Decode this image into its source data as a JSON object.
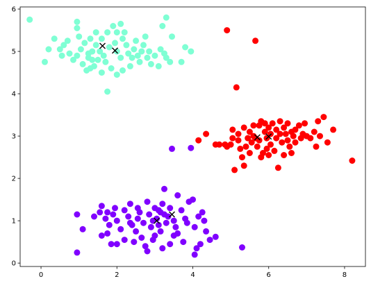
{
  "chart_data": {
    "type": "scatter",
    "title": "",
    "xlabel": "",
    "ylabel": "",
    "xlim": [
      -0.55,
      8.55
    ],
    "ylim": [
      -0.08,
      6.05
    ],
    "xticks": [
      0,
      2,
      4,
      6,
      8
    ],
    "yticks": [
      0,
      1,
      2,
      3,
      4,
      5,
      6
    ],
    "grid": false,
    "legend": "none",
    "series": [
      {
        "color": "#7fffd4",
        "points": [
          [
            -0.3,
            5.75
          ],
          [
            0.35,
            5.3
          ],
          [
            0.5,
            5.05
          ],
          [
            0.1,
            4.75
          ],
          [
            0.7,
            5.25
          ],
          [
            0.55,
            4.9
          ],
          [
            0.85,
            4.8
          ],
          [
            0.95,
            5.55
          ],
          [
            1.0,
            5.35
          ],
          [
            1.15,
            5.2
          ],
          [
            1.3,
            5.3
          ],
          [
            1.45,
            5.15
          ],
          [
            0.95,
            4.9
          ],
          [
            1.1,
            4.7
          ],
          [
            1.25,
            4.85
          ],
          [
            1.35,
            5.0
          ],
          [
            1.5,
            4.8
          ],
          [
            1.65,
            4.9
          ],
          [
            1.8,
            5.1
          ],
          [
            1.6,
            5.3
          ],
          [
            1.75,
            5.45
          ],
          [
            1.9,
            5.6
          ],
          [
            2.0,
            5.45
          ],
          [
            2.15,
            5.3
          ],
          [
            2.25,
            5.15
          ],
          [
            2.0,
            5.0
          ],
          [
            2.1,
            4.85
          ],
          [
            2.3,
            4.95
          ],
          [
            2.45,
            5.05
          ],
          [
            2.55,
            4.9
          ],
          [
            2.7,
            5.15
          ],
          [
            2.85,
            5.0
          ],
          [
            3.0,
            4.9
          ],
          [
            3.15,
            5.05
          ],
          [
            3.3,
            4.85
          ],
          [
            2.9,
            4.7
          ],
          [
            2.6,
            4.75
          ],
          [
            2.35,
            4.65
          ],
          [
            2.15,
            4.55
          ],
          [
            1.85,
            4.6
          ],
          [
            1.6,
            4.5
          ],
          [
            1.4,
            4.65
          ],
          [
            1.2,
            4.55
          ],
          [
            1.75,
            4.05
          ],
          [
            1.55,
            5.0
          ],
          [
            1.45,
            5.45
          ],
          [
            1.25,
            4.95
          ],
          [
            0.75,
            4.95
          ],
          [
            0.6,
            5.15
          ],
          [
            0.2,
            5.05
          ],
          [
            0.95,
            5.7
          ],
          [
            2.2,
            5.45
          ],
          [
            2.5,
            5.25
          ],
          [
            2.75,
            5.35
          ],
          [
            3.2,
            5.6
          ],
          [
            3.3,
            5.8
          ],
          [
            3.45,
            5.35
          ],
          [
            3.25,
            4.95
          ],
          [
            3.4,
            4.75
          ],
          [
            3.1,
            4.65
          ],
          [
            3.7,
            4.75
          ],
          [
            3.8,
            5.1
          ],
          [
            3.95,
            5.0
          ],
          [
            2.1,
            5.65
          ],
          [
            1.95,
            5.2
          ],
          [
            1.7,
            4.75
          ],
          [
            2.4,
            4.85
          ],
          [
            2.65,
            5.0
          ],
          [
            1.05,
            5.05
          ],
          [
            1.35,
            4.8
          ],
          [
            2.8,
            4.85
          ],
          [
            1.3,
            4.6
          ],
          [
            2.0,
            4.45
          ]
        ]
      },
      {
        "color": "#ff0000",
        "points": [
          [
            4.9,
            5.5
          ],
          [
            5.65,
            5.25
          ],
          [
            5.15,
            4.15
          ],
          [
            4.35,
            3.05
          ],
          [
            4.15,
            2.9
          ],
          [
            4.6,
            2.8
          ],
          [
            4.7,
            2.8
          ],
          [
            4.85,
            2.8
          ],
          [
            5.0,
            2.8
          ],
          [
            5.05,
            2.95
          ],
          [
            5.2,
            3.05
          ],
          [
            5.35,
            3.2
          ],
          [
            5.5,
            3.1
          ],
          [
            5.6,
            3.0
          ],
          [
            5.75,
            3.25
          ],
          [
            5.8,
            3.35
          ],
          [
            5.9,
            3.1
          ],
          [
            6.0,
            3.2
          ],
          [
            6.1,
            3.3
          ],
          [
            6.2,
            3.15
          ],
          [
            6.3,
            3.05
          ],
          [
            6.4,
            3.2
          ],
          [
            6.5,
            3.3
          ],
          [
            6.6,
            3.1
          ],
          [
            6.7,
            3.15
          ],
          [
            6.8,
            3.25
          ],
          [
            6.9,
            3.05
          ],
          [
            7.0,
            3.0
          ],
          [
            7.1,
            2.95
          ],
          [
            7.25,
            2.75
          ],
          [
            7.35,
            3.0
          ],
          [
            7.45,
            3.45
          ],
          [
            7.55,
            2.85
          ],
          [
            7.7,
            3.15
          ],
          [
            8.2,
            2.42
          ],
          [
            7.3,
            3.35
          ],
          [
            6.95,
            3.3
          ],
          [
            6.65,
            3.0
          ],
          [
            6.5,
            2.9
          ],
          [
            6.35,
            2.85
          ],
          [
            6.2,
            2.95
          ],
          [
            6.05,
            2.8
          ],
          [
            5.95,
            2.7
          ],
          [
            5.85,
            2.6
          ],
          [
            5.7,
            2.75
          ],
          [
            5.55,
            2.85
          ],
          [
            5.4,
            2.75
          ],
          [
            5.25,
            2.7
          ],
          [
            5.3,
            2.5
          ],
          [
            5.35,
            2.3
          ],
          [
            5.1,
            2.2
          ],
          [
            5.5,
            2.6
          ],
          [
            5.8,
            2.5
          ],
          [
            6.0,
            2.55
          ],
          [
            6.15,
            2.65
          ],
          [
            6.25,
            2.25
          ],
          [
            6.4,
            2.55
          ],
          [
            6.55,
            2.75
          ],
          [
            6.6,
            2.6
          ],
          [
            5.75,
            2.9
          ],
          [
            5.65,
            2.95
          ],
          [
            5.45,
            2.95
          ],
          [
            5.2,
            2.9
          ],
          [
            5.95,
            2.95
          ],
          [
            6.45,
            3.05
          ],
          [
            6.7,
            2.85
          ],
          [
            7.2,
            3.1
          ],
          [
            4.9,
            2.75
          ],
          [
            5.05,
            3.15
          ],
          [
            5.6,
            3.25
          ],
          [
            6.05,
            3.05
          ],
          [
            6.85,
            2.95
          ],
          [
            6.3,
            3.35
          ],
          [
            5.9,
            3.3
          ]
        ]
      },
      {
        "color": "#8000ff",
        "points": [
          [
            0.95,
            1.15
          ],
          [
            0.95,
            0.25
          ],
          [
            1.1,
            0.8
          ],
          [
            1.4,
            1.1
          ],
          [
            1.55,
            1.2
          ],
          [
            1.6,
            1.35
          ],
          [
            1.7,
            1.05
          ],
          [
            1.75,
            0.7
          ],
          [
            1.8,
            0.9
          ],
          [
            1.9,
            1.15
          ],
          [
            1.95,
            1.3
          ],
          [
            2.0,
            1.0
          ],
          [
            2.1,
            0.8
          ],
          [
            2.2,
            1.25
          ],
          [
            2.3,
            1.1
          ],
          [
            2.35,
            1.4
          ],
          [
            2.4,
            0.9
          ],
          [
            2.5,
            0.75
          ],
          [
            2.55,
            1.05
          ],
          [
            2.6,
            1.2
          ],
          [
            2.7,
            0.95
          ],
          [
            2.8,
            1.45
          ],
          [
            2.85,
            1.15
          ],
          [
            2.9,
            0.85
          ],
          [
            3.0,
            1.3
          ],
          [
            3.05,
            1.05
          ],
          [
            3.1,
            0.9
          ],
          [
            3.15,
            1.2
          ],
          [
            3.2,
            1.4
          ],
          [
            3.25,
            1.75
          ],
          [
            3.3,
            0.95
          ],
          [
            3.35,
            1.1
          ],
          [
            3.4,
            1.3
          ],
          [
            3.5,
            1.0
          ],
          [
            3.55,
            0.85
          ],
          [
            3.6,
            1.6
          ],
          [
            3.7,
            1.25
          ],
          [
            3.8,
            1.05
          ],
          [
            3.85,
            0.95
          ],
          [
            3.9,
            1.45
          ],
          [
            4.0,
            1.5
          ],
          [
            4.05,
            0.85
          ],
          [
            4.15,
            1.1
          ],
          [
            4.25,
            1.2
          ],
          [
            4.3,
            1.0
          ],
          [
            4.35,
            0.75
          ],
          [
            4.45,
            0.55
          ],
          [
            4.2,
            0.45
          ],
          [
            4.1,
            0.35
          ],
          [
            4.05,
            0.2
          ],
          [
            3.75,
            0.5
          ],
          [
            3.5,
            0.65
          ],
          [
            3.4,
            0.45
          ],
          [
            3.2,
            0.35
          ],
          [
            2.95,
            0.55
          ],
          [
            2.75,
            0.4
          ],
          [
            2.65,
            0.6
          ],
          [
            2.45,
            0.5
          ],
          [
            2.2,
            0.55
          ],
          [
            2.0,
            0.45
          ],
          [
            1.85,
            0.45
          ],
          [
            1.6,
            0.65
          ],
          [
            2.8,
            0.28
          ],
          [
            3.0,
            0.65
          ],
          [
            3.15,
            0.75
          ],
          [
            2.35,
            0.95
          ],
          [
            1.75,
            1.2
          ],
          [
            4.6,
            0.62
          ],
          [
            5.3,
            0.37
          ],
          [
            3.45,
            2.7
          ],
          [
            3.95,
            2.72
          ],
          [
            2.95,
            1.0
          ],
          [
            3.25,
            1.15
          ],
          [
            3.1,
            1.25
          ],
          [
            2.55,
            1.3
          ],
          [
            3.6,
            0.7
          ]
        ]
      }
    ],
    "markers": {
      "symbol": "x",
      "color": "#000000",
      "points": [
        [
          1.62,
          5.13
        ],
        [
          1.95,
          5.02
        ],
        [
          3.05,
          1.0
        ],
        [
          3.45,
          1.15
        ],
        [
          5.7,
          2.97
        ],
        [
          6.0,
          2.99
        ]
      ]
    }
  }
}
